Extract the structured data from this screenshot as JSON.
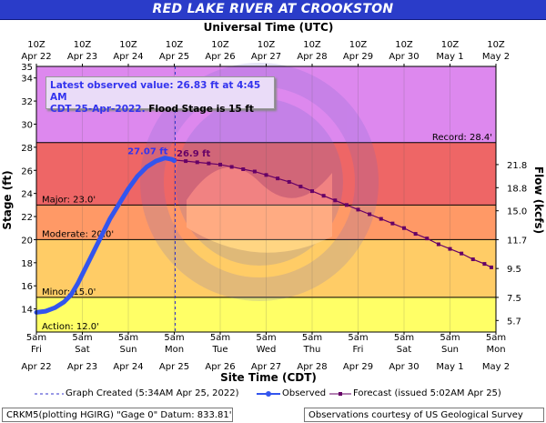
{
  "title": "RED LAKE RIVER AT CROOKSTON",
  "top_axis_title": "Universal Time (UTC)",
  "bottom_axis_title": "Site Time (CDT)",
  "left_axis_title": "Stage (ft)",
  "right_axis_title": "Flow (kcfs)",
  "info": {
    "line1": "Latest observed value: 26.83 ft at 4:45 AM",
    "line2_blue": "CDT 25-Apr-2022.",
    "line2_black": "Flood Stage is 15 ft"
  },
  "legend": {
    "graph_created": "Graph Created (5:34AM Apr 25, 2022)",
    "observed": "Observed",
    "forecast": "Forecast (issued 5:02AM Apr 25)"
  },
  "footer": {
    "left": "CRKM5(plotting HGIRG) \"Gage 0\" Datum: 833.81'",
    "right": "Observations courtesy of US Geological Survey"
  },
  "colors": {
    "record_band": "#dd88ee",
    "major_band": "#ee6666",
    "moderate_band": "#ff9966",
    "minor_band": "#ffcc66",
    "action_band": "#ffff66",
    "observed": "#3355ee",
    "forecast": "#660066",
    "title_bg": "#2a3cc9"
  },
  "chart_data": {
    "type": "line",
    "x_unit": "days since Apr 22 5am CDT",
    "xlim": [
      0,
      10
    ],
    "ylim": [
      12,
      35
    ],
    "top_ticks": [
      {
        "l1": "10Z",
        "l2": "Apr 22"
      },
      {
        "l1": "10Z",
        "l2": "Apr 23"
      },
      {
        "l1": "10Z",
        "l2": "Apr 24"
      },
      {
        "l1": "10Z",
        "l2": "Apr 25"
      },
      {
        "l1": "10Z",
        "l2": "Apr 26"
      },
      {
        "l1": "10Z",
        "l2": "Apr 27"
      },
      {
        "l1": "10Z",
        "l2": "Apr 28"
      },
      {
        "l1": "10Z",
        "l2": "Apr 29"
      },
      {
        "l1": "10Z",
        "l2": "Apr 30"
      },
      {
        "l1": "10Z",
        "l2": "May 1"
      },
      {
        "l1": "10Z",
        "l2": "May 2"
      }
    ],
    "bottom_ticks": [
      {
        "l1": "5am",
        "l2": "Fri",
        "l3": "Apr 22"
      },
      {
        "l1": "5am",
        "l2": "Sat",
        "l3": "Apr 23"
      },
      {
        "l1": "5am",
        "l2": "Sun",
        "l3": "Apr 24"
      },
      {
        "l1": "5am",
        "l2": "Mon",
        "l3": "Apr 25"
      },
      {
        "l1": "5am",
        "l2": "Tue",
        "l3": "Apr 26"
      },
      {
        "l1": "5am",
        "l2": "Wed",
        "l3": "Apr 27"
      },
      {
        "l1": "5am",
        "l2": "Thu",
        "l3": "Apr 28"
      },
      {
        "l1": "5am",
        "l2": "Fri",
        "l3": "Apr 29"
      },
      {
        "l1": "5am",
        "l2": "Sat",
        "l3": "Apr 30"
      },
      {
        "l1": "5am",
        "l2": "Sun",
        "l3": "May 1"
      },
      {
        "l1": "5am",
        "l2": "Mon",
        "l3": "May 2"
      }
    ],
    "left_ticks": [
      14,
      16,
      18,
      20,
      22,
      24,
      26,
      28,
      30,
      32,
      34
    ],
    "left_top_label": 35,
    "right_ticks": [
      {
        "stage": 13.0,
        "label": "5.7"
      },
      {
        "stage": 15.0,
        "label": "7.5"
      },
      {
        "stage": 17.5,
        "label": "9.5"
      },
      {
        "stage": 20.0,
        "label": "11.7"
      },
      {
        "stage": 22.5,
        "label": "15.0"
      },
      {
        "stage": 24.5,
        "label": "18.8"
      },
      {
        "stage": 26.5,
        "label": "21.8"
      }
    ],
    "bands": [
      {
        "name": "Record",
        "from": 28.4,
        "to": 35,
        "label": "Record: 28.4'"
      },
      {
        "name": "Major",
        "from": 23.0,
        "to": 28.4,
        "label": "Major: 23.0'"
      },
      {
        "name": "Moderate",
        "from": 20.0,
        "to": 23.0,
        "label": "Moderate: 20.0'"
      },
      {
        "name": "Minor",
        "from": 15.0,
        "to": 20.0,
        "label": "Minor: 15.0'"
      },
      {
        "name": "Action",
        "from": 12.0,
        "to": 15.0,
        "label": "Action: 12.0'"
      }
    ],
    "graph_created_x": 3.02,
    "observed": [
      [
        0.0,
        13.7
      ],
      [
        0.2,
        13.8
      ],
      [
        0.4,
        14.1
      ],
      [
        0.6,
        14.6
      ],
      [
        0.75,
        15.2
      ],
      [
        0.9,
        16.2
      ],
      [
        1.0,
        17.0
      ],
      [
        1.2,
        18.6
      ],
      [
        1.4,
        20.2
      ],
      [
        1.6,
        21.8
      ],
      [
        1.8,
        23.1
      ],
      [
        2.0,
        24.4
      ],
      [
        2.2,
        25.5
      ],
      [
        2.4,
        26.3
      ],
      [
        2.6,
        26.8
      ],
      [
        2.8,
        27.07
      ],
      [
        2.95,
        26.95
      ],
      [
        3.0,
        26.83
      ]
    ],
    "forecast": [
      [
        3.0,
        26.9
      ],
      [
        3.25,
        26.8
      ],
      [
        3.5,
        26.7
      ],
      [
        3.75,
        26.6
      ],
      [
        4.0,
        26.5
      ],
      [
        4.25,
        26.3
      ],
      [
        4.5,
        26.1
      ],
      [
        4.75,
        25.9
      ],
      [
        5.0,
        25.6
      ],
      [
        5.25,
        25.3
      ],
      [
        5.5,
        25.0
      ],
      [
        5.75,
        24.6
      ],
      [
        6.0,
        24.2
      ],
      [
        6.25,
        23.8
      ],
      [
        6.5,
        23.4
      ],
      [
        6.75,
        23.0
      ],
      [
        7.0,
        22.6
      ],
      [
        7.25,
        22.2
      ],
      [
        7.5,
        21.8
      ],
      [
        7.75,
        21.4
      ],
      [
        8.0,
        21.0
      ],
      [
        8.25,
        20.5
      ],
      [
        8.5,
        20.1
      ],
      [
        8.75,
        19.6
      ],
      [
        9.0,
        19.2
      ],
      [
        9.25,
        18.8
      ],
      [
        9.5,
        18.3
      ],
      [
        9.75,
        17.9
      ],
      [
        9.9,
        17.6
      ]
    ],
    "annotations": [
      {
        "x": 2.8,
        "y": 27.07,
        "text": "27.07 ft",
        "color": "#3333ee"
      },
      {
        "x": 3.05,
        "y": 26.9,
        "text": "26.9 ft",
        "color": "#660066"
      }
    ]
  }
}
